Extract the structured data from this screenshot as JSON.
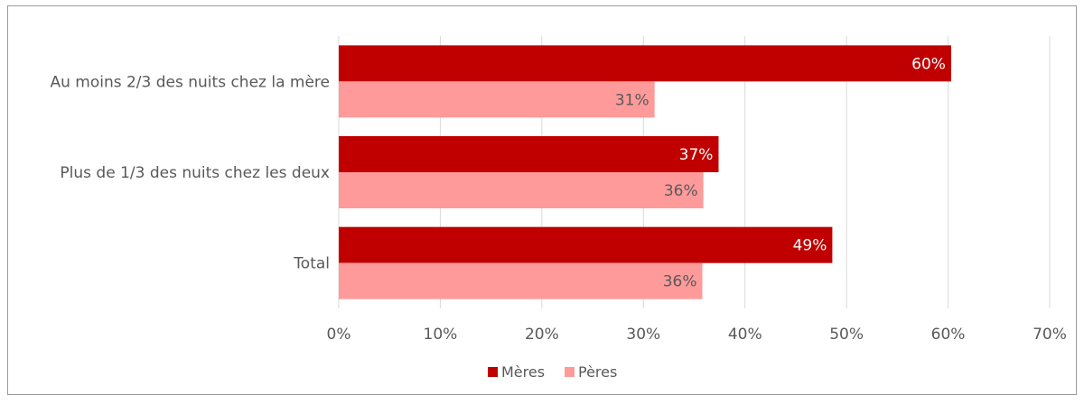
{
  "chart_data": {
    "type": "bar",
    "orientation": "horizontal",
    "categories": [
      "Au moins 2/3 des nuits chez la mère",
      "Plus de 1/3 des nuits chez les deux",
      "Total"
    ],
    "series": [
      {
        "name": "Mères",
        "values": [
          60.3,
          37.4,
          48.6
        ],
        "labels": [
          "60%",
          "37%",
          "49%"
        ],
        "color": "#c00000",
        "label_color": "#ffffff"
      },
      {
        "name": "Pères",
        "values": [
          31.1,
          35.9,
          35.8
        ],
        "labels": [
          "31%",
          "36%",
          "36%"
        ],
        "color": "#ff9a9a",
        "label_color": "#595959"
      }
    ],
    "xlim": [
      0,
      70
    ],
    "xticks": [
      0,
      10,
      20,
      30,
      40,
      50,
      60,
      70
    ],
    "xtick_labels": [
      "0%",
      "10%",
      "20%",
      "30%",
      "40%",
      "50%",
      "60%",
      "70%"
    ],
    "grid": "vertical",
    "legend_position": "bottom",
    "title": "",
    "xlabel": "",
    "ylabel": ""
  }
}
